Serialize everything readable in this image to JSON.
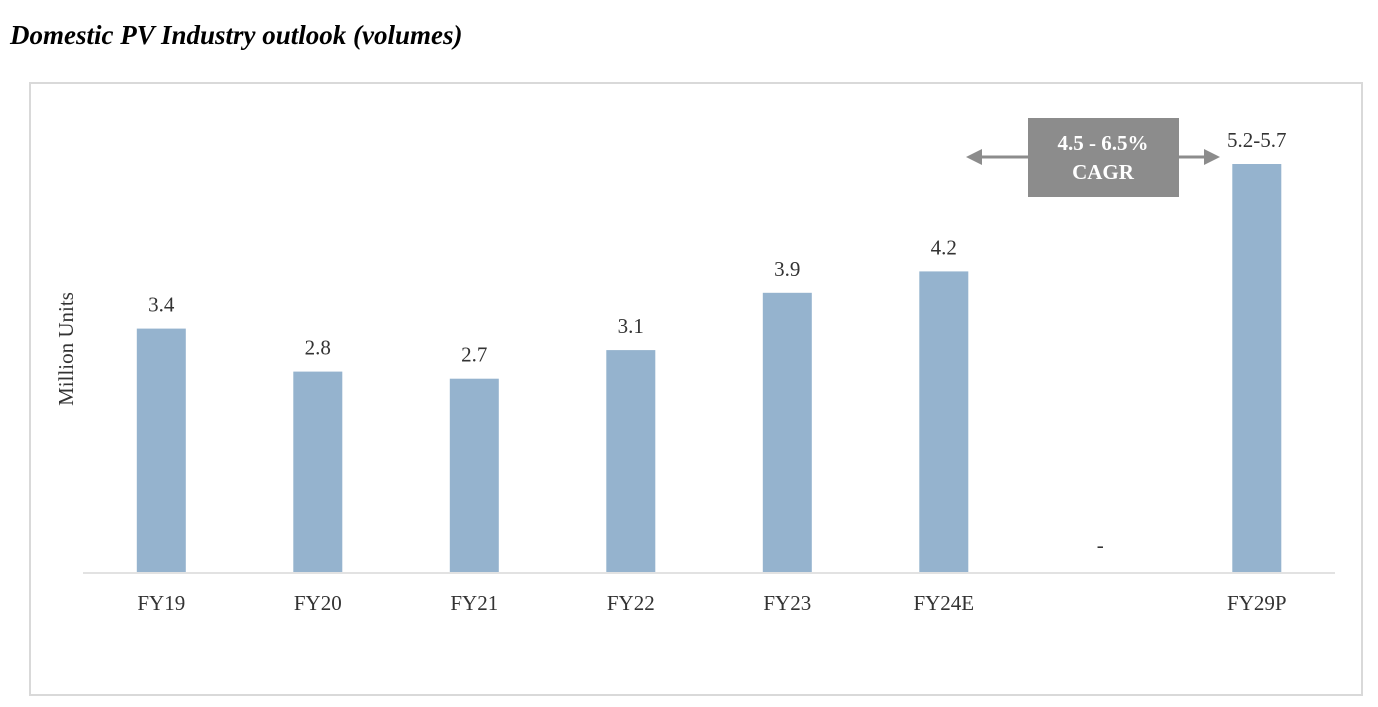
{
  "title": "Domestic PV Industry outlook (volumes)",
  "chart_data": {
    "type": "bar",
    "title": "Domestic PV Industry outlook (volumes)",
    "xlabel": "",
    "ylabel": "Million Units",
    "ylim": [
      0,
      5.7
    ],
    "grid": false,
    "bar_color": "#95b3ce",
    "categories": [
      "FY19",
      "FY20",
      "FY21",
      "FY22",
      "FY23",
      "FY24E",
      "",
      "FY29P"
    ],
    "values": [
      3.4,
      2.8,
      2.7,
      3.1,
      3.9,
      4.2,
      0,
      5.7
    ],
    "data_labels": [
      "3.4",
      "2.8",
      "2.7",
      "3.1",
      "3.9",
      "4.2",
      "-",
      "5.2-5.7"
    ],
    "annotation": {
      "lines": [
        "4.5 - 6.5%",
        "CAGR"
      ],
      "box_color": "#8c8c8c",
      "text_color": "#ffffff"
    }
  }
}
